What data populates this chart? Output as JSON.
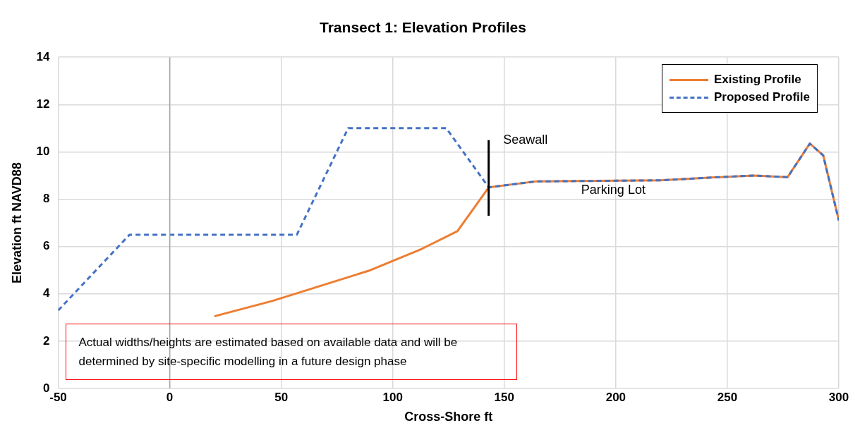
{
  "chart_data": {
    "type": "line",
    "title": "Transect 1: Elevation Profiles",
    "xlabel": "Cross-Shore ft",
    "ylabel": "Elevation ft NAVD88",
    "xlim": [
      -50,
      300
    ],
    "xticks": [
      -50,
      0,
      50,
      100,
      150,
      200,
      250,
      300
    ],
    "ylim": [
      0,
      14
    ],
    "yticks": [
      0,
      2,
      4,
      6,
      8,
      10,
      12,
      14
    ],
    "grid": true,
    "legend": "top right",
    "marker": "none",
    "ref_lines": [
      {
        "axis": "x",
        "value": 0,
        "color": "#a6a6a6"
      }
    ],
    "series": [
      {
        "name": "Existing Profile",
        "color": "#ed7d31",
        "line_style": "solid",
        "x": [
          20,
          46,
          90,
          113,
          129,
          143,
          164,
          200,
          220,
          250,
          262,
          277,
          287,
          293,
          300
        ],
        "values": [
          3.05,
          3.7,
          5.0,
          5.9,
          6.65,
          8.5,
          8.75,
          8.78,
          8.8,
          8.95,
          9.0,
          8.93,
          10.35,
          9.85,
          7.1
        ]
      },
      {
        "name": "Proposed Profile",
        "color": "#4472c4",
        "line_style": "dashed",
        "x": [
          -50,
          -18,
          57,
          80,
          124,
          143,
          164,
          200,
          220,
          250,
          262,
          277,
          287,
          293,
          300
        ],
        "values": [
          3.3,
          6.5,
          6.5,
          11,
          11,
          8.5,
          8.75,
          8.78,
          8.8,
          8.95,
          9.0,
          8.93,
          10.35,
          9.85,
          7.1
        ]
      },
      {
        "color": "#000000",
        "line_style": "solid",
        "x": [
          143,
          143
        ],
        "values": [
          7.3,
          10.5
        ]
      }
    ],
    "annotations": [
      "Seawall",
      "Parking Lot",
      "Actual widths/heights are estimated based on available data and will be determined by site-specific modelling in a future design phase"
    ]
  }
}
